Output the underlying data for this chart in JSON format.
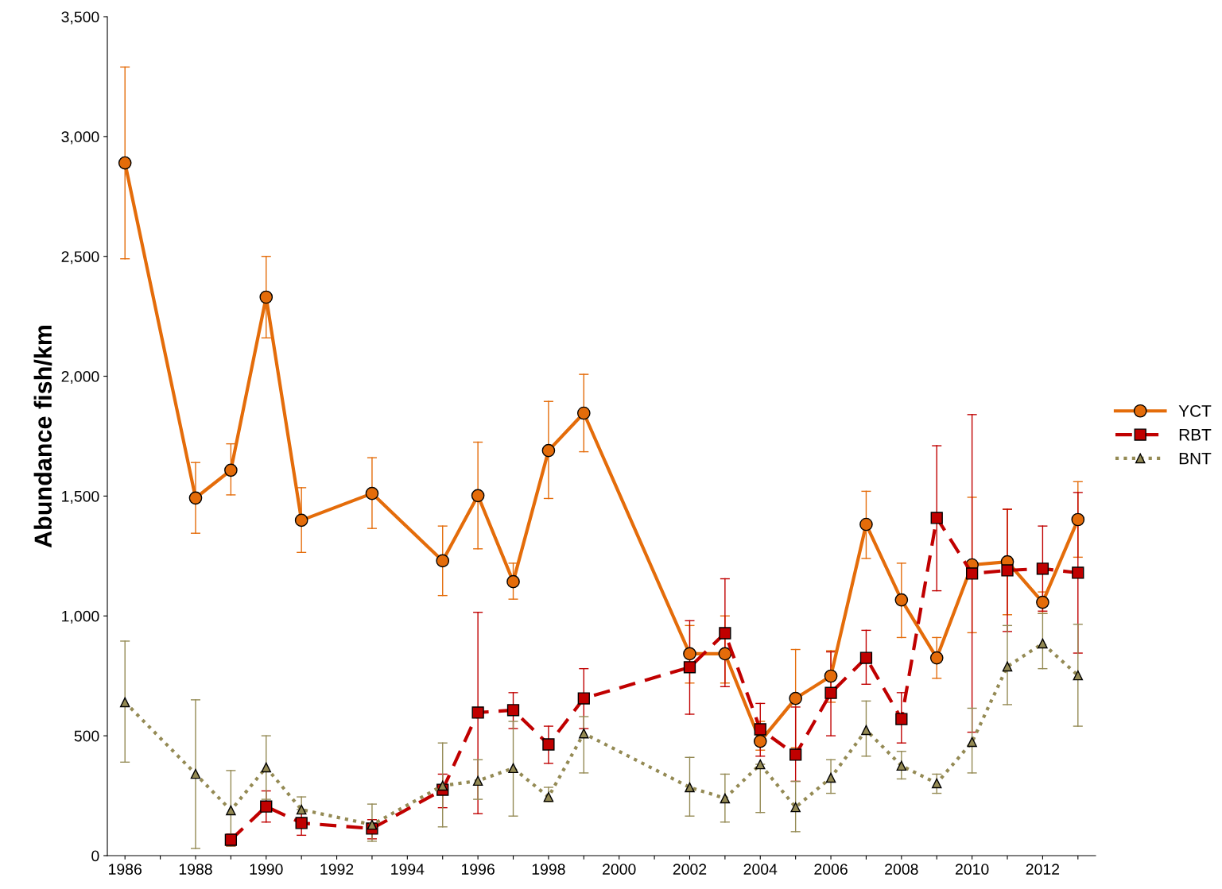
{
  "chart_data": {
    "type": "line",
    "ylabel": "Abundance fish/km",
    "x": [
      1986,
      1988,
      1989,
      1990,
      1991,
      1993,
      1995,
      1996,
      1997,
      1998,
      1999,
      2002,
      2003,
      2004,
      2005,
      2006,
      2007,
      2008,
      2009,
      2010,
      2011,
      2012,
      2013
    ],
    "xlim": [
      1985.5,
      2013.5
    ],
    "xticks": [
      1986,
      {
        "value": 1987,
        "label": null
      },
      1988,
      {
        "value": 1989,
        "label": null
      },
      1990,
      {
        "value": 1991,
        "label": null
      },
      1992,
      {
        "value": 1993,
        "label": null
      },
      1994,
      {
        "value": 1995,
        "label": null
      },
      1996,
      {
        "value": 1997,
        "label": null
      },
      1998,
      {
        "value": 1999,
        "label": null
      },
      2000,
      {
        "value": 2001,
        "label": null
      },
      2002,
      {
        "value": 2003,
        "label": null
      },
      2004,
      {
        "value": 2005,
        "label": null
      },
      2006,
      {
        "value": 2007,
        "label": null
      },
      2008,
      {
        "value": 2009,
        "label": null
      },
      2010,
      {
        "value": 2011,
        "label": null
      },
      2012,
      {
        "value": 2013,
        "label": null
      }
    ],
    "ylim": [
      0,
      3500
    ],
    "yticks": [
      0,
      500,
      {
        "value": 1000,
        "label": "1,000"
      },
      {
        "value": 1500,
        "label": "1,500"
      },
      {
        "value": 2000,
        "label": "2,000"
      },
      {
        "value": 2500,
        "label": "2,500"
      },
      {
        "value": 3000,
        "label": "3,000"
      },
      {
        "value": 3500,
        "label": "3,500"
      }
    ],
    "grid": false,
    "legend": "right",
    "series": [
      {
        "name": "YCT",
        "color": "#e46c0a",
        "marker": "circle",
        "line_style": "solid",
        "values": [
          2890,
          1492,
          1608,
          2330,
          1399,
          1511,
          1230,
          1502,
          1143,
          1690,
          1846,
          842,
          842,
          477,
          656,
          749,
          1382,
          1067,
          825,
          1213,
          1226,
          1057,
          1402
        ],
        "errors": [
          [
            2490,
            3290
          ],
          [
            1345,
            1640
          ],
          [
            1505,
            1718
          ],
          [
            2160,
            2500
          ],
          [
            1265,
            1535
          ],
          [
            1365,
            1660
          ],
          [
            1085,
            1375
          ],
          [
            1280,
            1725
          ],
          [
            1070,
            1220
          ],
          [
            1490,
            1895
          ],
          [
            1685,
            2008
          ],
          [
            720,
            960
          ],
          [
            720,
            1000
          ],
          [
            440,
            560
          ],
          [
            450,
            860
          ],
          [
            640,
            855
          ],
          [
            1240,
            1520
          ],
          [
            910,
            1220
          ],
          [
            740,
            910
          ],
          [
            930,
            1495
          ],
          [
            1005,
            1445
          ],
          [
            1010,
            1100
          ],
          [
            1245,
            1560
          ]
        ]
      },
      {
        "name": "RBT",
        "color": "#c00000",
        "marker": "square",
        "line_style": "dashed",
        "x": [
          1989,
          1990,
          1991,
          1993,
          1995,
          1996,
          1997,
          1998,
          1999,
          2002,
          2003,
          2004,
          2005,
          2006,
          2007,
          2008,
          2009,
          2010,
          2011,
          2012,
          2013
        ],
        "values": [
          66,
          205,
          136,
          113,
          275,
          597,
          607,
          464,
          656,
          786,
          928,
          527,
          421,
          679,
          825,
          570,
          1409,
          1177,
          1190,
          1197,
          1180
        ],
        "errors": [
          [
            40,
            90
          ],
          [
            140,
            270
          ],
          [
            85,
            175
          ],
          [
            70,
            150
          ],
          [
            200,
            340
          ],
          [
            175,
            1015
          ],
          [
            530,
            680
          ],
          [
            385,
            540
          ],
          [
            530,
            780
          ],
          [
            590,
            980
          ],
          [
            705,
            1155
          ],
          [
            415,
            635
          ],
          [
            310,
            620
          ],
          [
            500,
            850
          ],
          [
            715,
            940
          ],
          [
            470,
            680
          ],
          [
            1105,
            1710
          ],
          [
            515,
            1840
          ],
          [
            935,
            1445
          ],
          [
            1020,
            1375
          ],
          [
            845,
            1515
          ]
        ]
      },
      {
        "name": "BNT",
        "color": "#948a54",
        "marker": "triangle",
        "line_style": "dotted",
        "values": [
          640,
          341,
          189,
          368,
          192,
          129,
          292,
          312,
          365,
          245,
          510,
          285,
          239,
          381,
          202,
          325,
          524,
          375,
          302,
          474,
          789,
          885,
          752
        ],
        "errors": [
          [
            390,
            895
          ],
          [
            30,
            650
          ],
          [
            40,
            355
          ],
          [
            235,
            500
          ],
          [
            192,
            245
          ],
          [
            60,
            215
          ],
          [
            120,
            470
          ],
          [
            235,
            400
          ],
          [
            165,
            560
          ],
          [
            225,
            285
          ],
          [
            345,
            580
          ],
          [
            165,
            410
          ],
          [
            140,
            340
          ],
          [
            180,
            381
          ],
          [
            100,
            310
          ],
          [
            260,
            400
          ],
          [
            415,
            645
          ],
          [
            320,
            435
          ],
          [
            260,
            340
          ],
          [
            345,
            615
          ],
          [
            630,
            960
          ],
          [
            780,
            1010
          ],
          [
            540,
            965
          ]
        ]
      }
    ]
  }
}
